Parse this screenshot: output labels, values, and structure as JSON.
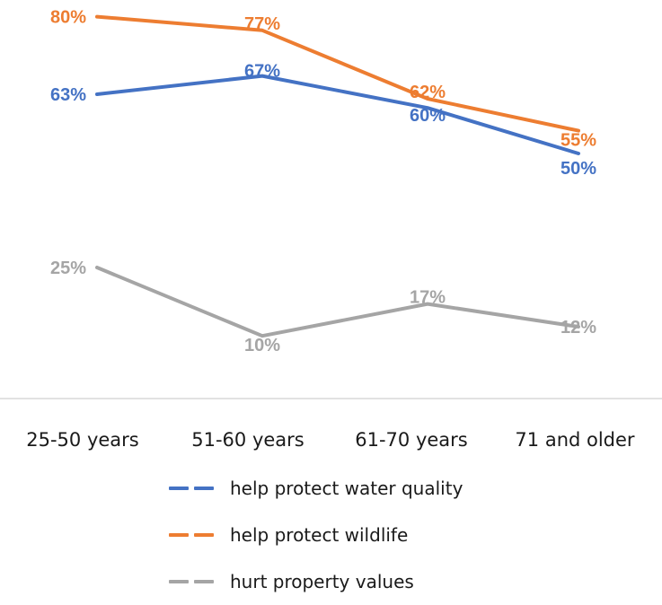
{
  "chart_data": {
    "type": "line",
    "categories": [
      "25-50 years",
      "51-60 years",
      "61-70 years",
      "71 and older"
    ],
    "ylim": [
      0,
      85
    ],
    "grid": false,
    "legend_placement": "bottom",
    "series": [
      {
        "name": "help protect water quality",
        "values": [
          63,
          67,
          60,
          50
        ],
        "labels": [
          "63%",
          "67%",
          "60%",
          "50%"
        ],
        "color": "#4472C4"
      },
      {
        "name": "help protect wildlife",
        "values": [
          80,
          77,
          62,
          55
        ],
        "labels": [
          "80%",
          "77%",
          "62%",
          "55%"
        ],
        "color": "#ED7D31"
      },
      {
        "name": "hurt property values",
        "values": [
          25,
          10,
          17,
          12
        ],
        "labels": [
          "25%",
          "10%",
          "17%",
          "12%"
        ],
        "color": "#A5A5A5"
      }
    ]
  }
}
